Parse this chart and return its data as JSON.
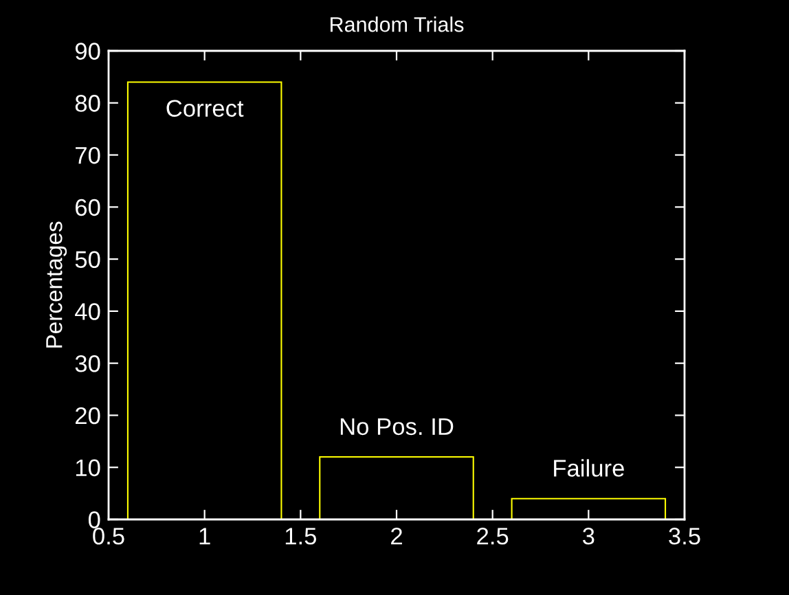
{
  "chart_data": {
    "type": "bar",
    "title": "Random Trials",
    "ylabel": "Percentages",
    "x": [
      1,
      2,
      3
    ],
    "values": [
      84,
      12,
      4
    ],
    "color": "#ffff00",
    "xlim": [
      0.5,
      3.5
    ],
    "xticks": [
      0.5,
      1,
      1.5,
      2,
      2.5,
      3,
      3.5
    ],
    "ylim": [
      0,
      90
    ],
    "yticks": [
      0,
      10,
      20,
      30,
      40,
      50,
      60,
      70,
      80,
      90
    ],
    "annotations": [
      {
        "text": "Correct",
        "x": 1,
        "y": 84
      },
      {
        "text": "No Pos. ID",
        "x": 2,
        "y": 12
      },
      {
        "text": "Failure",
        "x": 3,
        "y": 4
      }
    ]
  }
}
